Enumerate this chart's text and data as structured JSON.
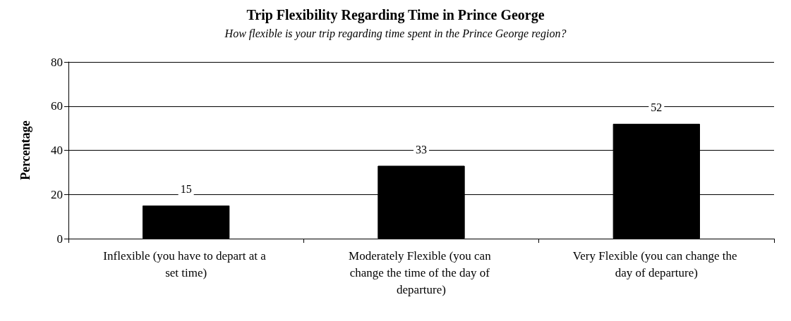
{
  "chart_data": {
    "type": "bar",
    "title": "Trip Flexibility Regarding Time in Prince George",
    "subtitle": "How flexible is your trip regarding time spent in the Prince George region?",
    "ylabel": "Percentage",
    "categories": [
      "Inflexible (you have to depart at a set time)",
      "Moderately Flexible (you can change the time of the day of departure)",
      "Very Flexible (you can change the day of departure)"
    ],
    "values": [
      15,
      33,
      52
    ],
    "color": "#000000",
    "ylim": [
      0,
      80
    ],
    "yticks": [
      0,
      20,
      40,
      60,
      80
    ],
    "grid": "y",
    "data_labels": true
  }
}
